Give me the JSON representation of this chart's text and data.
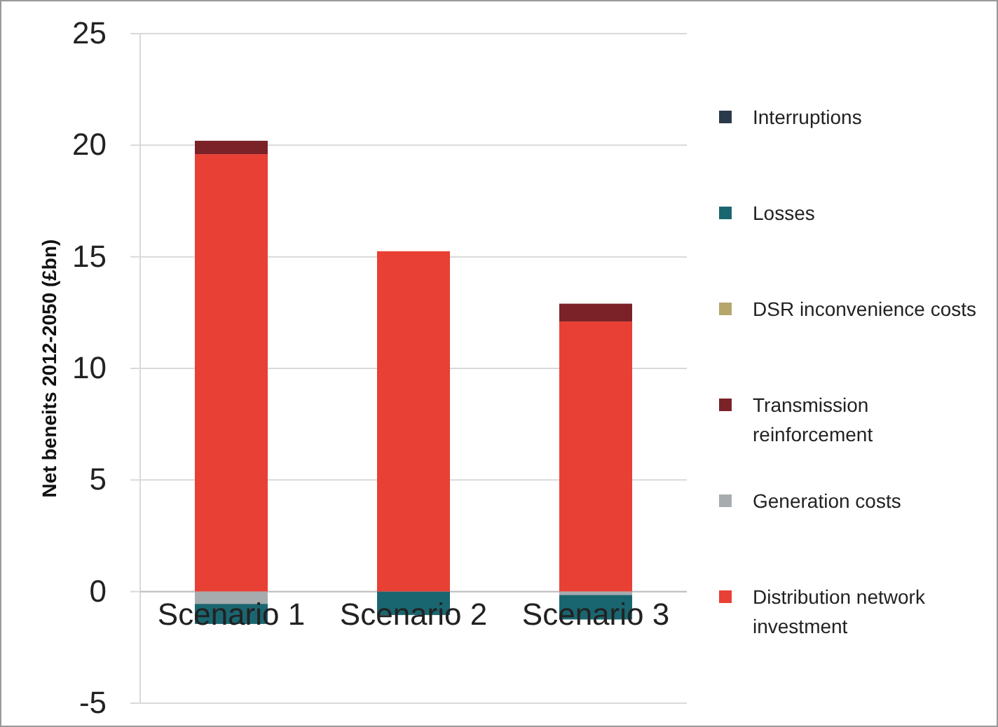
{
  "chart_data": {
    "type": "bar",
    "stacked": true,
    "ylabel": "Net beneits 2012-2050  (£bn)",
    "categories": [
      "Scenario 1",
      "Scenario 2",
      "Scenario 3"
    ],
    "series": [
      {
        "name": "Distribution network investment",
        "color": "#e84034",
        "values": [
          19.6,
          15.25,
          12.1
        ]
      },
      {
        "name": "Generation costs",
        "color": "#a6abae",
        "values": [
          -0.55,
          0,
          -0.15
        ]
      },
      {
        "name": "Transmission reinforcement",
        "color": "#7b2228",
        "values": [
          0.6,
          0,
          0.8
        ]
      },
      {
        "name": "DSR inconvenience costs",
        "color": "#b5a66b",
        "values": [
          0,
          0,
          0
        ]
      },
      {
        "name": "Losses",
        "color": "#1a6670",
        "values": [
          -0.9,
          -1.05,
          -1.1
        ]
      },
      {
        "name": "Interruptions",
        "color": "#2b3a4a",
        "values": [
          0,
          0,
          0
        ]
      }
    ],
    "ylim": [
      -5,
      25
    ],
    "yticks": [
      -5,
      0,
      5,
      10,
      15,
      20,
      25
    ],
    "grid": "y",
    "legend": "right"
  }
}
